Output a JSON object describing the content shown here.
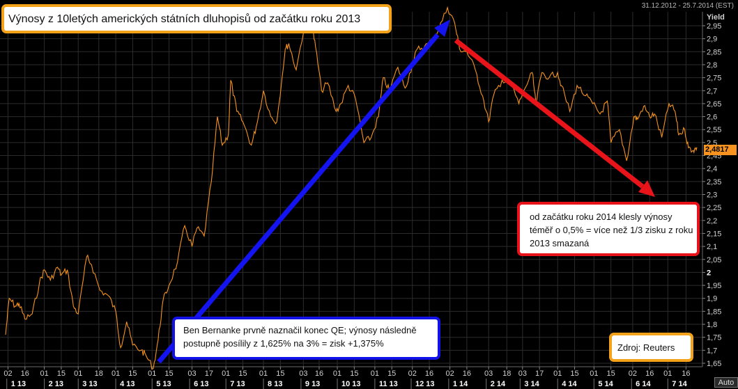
{
  "header": {
    "date_range": "31.12.2012 - 25.7.2014 (EST)"
  },
  "title_box": {
    "text": "Výnosy z 10letých amerických státních dluhopisů od začátku roku 2013"
  },
  "red_note": {
    "text": "od začátku roku 2014 klesly výnosy téměř o 0,5% = více než 1/3 zisku z roku 2013 smazaná"
  },
  "blue_note": {
    "text": "Ben Bernanke prvně naznačil konec QE; výnosy následně postupně posílily z 1,625% na 3% = zisk +1,375%"
  },
  "source_box": {
    "text": "Zdroj: Reuters"
  },
  "y_axis": {
    "name": "Yield",
    "last_value": "2,4817",
    "auto_button": "Auto"
  },
  "colors": {
    "line": "#f7931e",
    "grid": "#2c2c2c",
    "up_arrow": "#1414f0",
    "down_arrow": "#e8141a",
    "callout_border": "#f4a21a"
  },
  "chart_data": {
    "type": "line",
    "ylabel": "Yield",
    "ylim": [
      1.63,
      3.02
    ],
    "x_start": "2012-12-31",
    "x_end": "2014-07-25",
    "y_ticks": [
      {
        "value": 1.65,
        "label": "1,65"
      },
      {
        "value": 1.7,
        "label": "1,7"
      },
      {
        "value": 1.75,
        "label": "1,75"
      },
      {
        "value": 1.8,
        "label": "1,8"
      },
      {
        "value": 1.85,
        "label": "1,85"
      },
      {
        "value": 1.9,
        "label": "1,9"
      },
      {
        "value": 1.95,
        "label": "1,95"
      },
      {
        "value": 2.0,
        "label": "2"
      },
      {
        "value": 2.05,
        "label": "2,05"
      },
      {
        "value": 2.1,
        "label": "2,1"
      },
      {
        "value": 2.15,
        "label": "2,15"
      },
      {
        "value": 2.2,
        "label": "2,2"
      },
      {
        "value": 2.25,
        "label": "2,25"
      },
      {
        "value": 2.3,
        "label": "2,3"
      },
      {
        "value": 2.35,
        "label": "2,35"
      },
      {
        "value": 2.4,
        "label": "2,4"
      },
      {
        "value": 2.45,
        "label": "2,45"
      },
      {
        "value": 2.5,
        "label": "2,5"
      },
      {
        "value": 2.55,
        "label": "2,55"
      },
      {
        "value": 2.6,
        "label": "2,6"
      },
      {
        "value": 2.65,
        "label": "2,65"
      },
      {
        "value": 2.7,
        "label": "2,7"
      },
      {
        "value": 2.75,
        "label": "2,75"
      },
      {
        "value": 2.8,
        "label": "2,8"
      },
      {
        "value": 2.85,
        "label": "2,85"
      },
      {
        "value": 2.9,
        "label": "2,9"
      },
      {
        "value": 2.95,
        "label": "2,95"
      }
    ],
    "x_ticks": [
      {
        "date": "2013-01-02",
        "label": "02"
      },
      {
        "date": "2013-01-16",
        "label": "16"
      },
      {
        "date": "2013-02-01",
        "label": "01"
      },
      {
        "date": "2013-02-15",
        "label": "15"
      },
      {
        "date": "2013-03-01",
        "label": "01"
      },
      {
        "date": "2013-03-18",
        "label": "18"
      },
      {
        "date": "2013-04-01",
        "label": "01"
      },
      {
        "date": "2013-04-15",
        "label": "15"
      },
      {
        "date": "2013-05-01",
        "label": "01"
      },
      {
        "date": "2013-05-15",
        "label": "15"
      },
      {
        "date": "2013-06-03",
        "label": "03"
      },
      {
        "date": "2013-06-17",
        "label": "17"
      },
      {
        "date": "2013-07-01",
        "label": "01"
      },
      {
        "date": "2013-07-15",
        "label": "15"
      },
      {
        "date": "2013-08-01",
        "label": "01"
      },
      {
        "date": "2013-08-15",
        "label": "15"
      },
      {
        "date": "2013-09-03",
        "label": "03"
      },
      {
        "date": "2013-09-16",
        "label": "16"
      },
      {
        "date": "2013-10-01",
        "label": "01"
      },
      {
        "date": "2013-10-15",
        "label": "15"
      },
      {
        "date": "2013-11-01",
        "label": "01"
      },
      {
        "date": "2013-11-15",
        "label": "15"
      },
      {
        "date": "2013-12-02",
        "label": "02"
      },
      {
        "date": "2013-12-16",
        "label": "16"
      },
      {
        "date": "2014-01-02",
        "label": "02"
      },
      {
        "date": "2014-01-16",
        "label": "16"
      },
      {
        "date": "2014-02-03",
        "label": "03"
      },
      {
        "date": "2014-02-18",
        "label": "18"
      },
      {
        "date": "2014-03-03",
        "label": "03"
      },
      {
        "date": "2014-03-17",
        "label": "17"
      },
      {
        "date": "2014-04-01",
        "label": "01"
      },
      {
        "date": "2014-04-15",
        "label": "15"
      },
      {
        "date": "2014-05-01",
        "label": "01"
      },
      {
        "date": "2014-05-15",
        "label": "15"
      },
      {
        "date": "2014-06-02",
        "label": "02"
      },
      {
        "date": "2014-06-16",
        "label": "16"
      },
      {
        "date": "2014-07-01",
        "label": "01"
      },
      {
        "date": "2014-07-16",
        "label": "16"
      }
    ],
    "month_labels": [
      {
        "date": "2013-01-01",
        "label": "1 13"
      },
      {
        "date": "2013-02-01",
        "label": "2 13"
      },
      {
        "date": "2013-03-01",
        "label": "3 13"
      },
      {
        "date": "2013-04-01",
        "label": "4 13"
      },
      {
        "date": "2013-05-01",
        "label": "5 13"
      },
      {
        "date": "2013-06-01",
        "label": "6 13"
      },
      {
        "date": "2013-07-01",
        "label": "7 13"
      },
      {
        "date": "2013-08-01",
        "label": "8 13"
      },
      {
        "date": "2013-09-01",
        "label": "9 13"
      },
      {
        "date": "2013-10-01",
        "label": "10 13"
      },
      {
        "date": "2013-11-01",
        "label": "11 13"
      },
      {
        "date": "2013-12-01",
        "label": "12 13"
      },
      {
        "date": "2014-01-01",
        "label": "1 14"
      },
      {
        "date": "2014-02-01",
        "label": "2 14"
      },
      {
        "date": "2014-03-01",
        "label": "3 14"
      },
      {
        "date": "2014-04-01",
        "label": "4 14"
      },
      {
        "date": "2014-05-01",
        "label": "5 14"
      },
      {
        "date": "2014-06-01",
        "label": "6 14"
      },
      {
        "date": "2014-07-01",
        "label": "7 14"
      }
    ],
    "series": [
      {
        "points": [
          [
            "2012-12-31",
            1.76
          ],
          [
            "2013-01-03",
            1.9
          ],
          [
            "2013-01-08",
            1.87
          ],
          [
            "2013-01-11",
            1.88
          ],
          [
            "2013-01-16",
            1.82
          ],
          [
            "2013-01-22",
            1.84
          ],
          [
            "2013-01-28",
            1.96
          ],
          [
            "2013-02-01",
            2.01
          ],
          [
            "2013-02-06",
            1.97
          ],
          [
            "2013-02-12",
            2.02
          ],
          [
            "2013-02-15",
            1.99
          ],
          [
            "2013-02-20",
            2.01
          ],
          [
            "2013-02-25",
            1.87
          ],
          [
            "2013-03-01",
            1.84
          ],
          [
            "2013-03-08",
            2.06
          ],
          [
            "2013-03-12",
            2.03
          ],
          [
            "2013-03-19",
            1.93
          ],
          [
            "2013-03-26",
            1.91
          ],
          [
            "2013-04-01",
            1.85
          ],
          [
            "2013-04-05",
            1.71
          ],
          [
            "2013-04-10",
            1.81
          ],
          [
            "2013-04-15",
            1.72
          ],
          [
            "2013-04-22",
            1.7
          ],
          [
            "2013-04-26",
            1.68
          ],
          [
            "2013-05-02",
            1.63
          ],
          [
            "2013-05-06",
            1.74
          ],
          [
            "2013-05-10",
            1.89
          ],
          [
            "2013-05-15",
            1.95
          ],
          [
            "2013-05-22",
            2.04
          ],
          [
            "2013-05-28",
            2.18
          ],
          [
            "2013-06-03",
            2.1
          ],
          [
            "2013-06-07",
            2.17
          ],
          [
            "2013-06-13",
            2.14
          ],
          [
            "2013-06-19",
            2.35
          ],
          [
            "2013-06-24",
            2.6
          ],
          [
            "2013-06-28",
            2.49
          ],
          [
            "2013-07-03",
            2.53
          ],
          [
            "2013-07-05",
            2.74
          ],
          [
            "2013-07-10",
            2.62
          ],
          [
            "2013-07-15",
            2.58
          ],
          [
            "2013-07-22",
            2.49
          ],
          [
            "2013-07-26",
            2.56
          ],
          [
            "2013-08-01",
            2.7
          ],
          [
            "2013-08-07",
            2.6
          ],
          [
            "2013-08-12",
            2.58
          ],
          [
            "2013-08-19",
            2.86
          ],
          [
            "2013-08-22",
            2.88
          ],
          [
            "2013-08-28",
            2.78
          ],
          [
            "2013-09-05",
            2.98
          ],
          [
            "2013-09-10",
            2.95
          ],
          [
            "2013-09-13",
            2.87
          ],
          [
            "2013-09-18",
            2.7
          ],
          [
            "2013-09-23",
            2.73
          ],
          [
            "2013-09-30",
            2.62
          ],
          [
            "2013-10-04",
            2.65
          ],
          [
            "2013-10-10",
            2.72
          ],
          [
            "2013-10-16",
            2.67
          ],
          [
            "2013-10-23",
            2.5
          ],
          [
            "2013-10-29",
            2.52
          ],
          [
            "2013-11-04",
            2.6
          ],
          [
            "2013-11-08",
            2.75
          ],
          [
            "2013-11-13",
            2.7
          ],
          [
            "2013-11-20",
            2.79
          ],
          [
            "2013-11-26",
            2.71
          ],
          [
            "2013-12-02",
            2.8
          ],
          [
            "2013-12-06",
            2.86
          ],
          [
            "2013-12-12",
            2.87
          ],
          [
            "2013-12-18",
            2.89
          ],
          [
            "2013-12-24",
            2.94
          ],
          [
            "2013-12-31",
            3.02
          ],
          [
            "2014-01-06",
            2.96
          ],
          [
            "2014-01-10",
            2.86
          ],
          [
            "2014-01-16",
            2.85
          ],
          [
            "2014-01-23",
            2.78
          ],
          [
            "2014-01-29",
            2.68
          ],
          [
            "2014-02-03",
            2.58
          ],
          [
            "2014-02-07",
            2.68
          ],
          [
            "2014-02-14",
            2.74
          ],
          [
            "2014-02-21",
            2.73
          ],
          [
            "2014-02-28",
            2.65
          ],
          [
            "2014-03-04",
            2.7
          ],
          [
            "2014-03-11",
            2.77
          ],
          [
            "2014-03-14",
            2.65
          ],
          [
            "2014-03-19",
            2.77
          ],
          [
            "2014-03-25",
            2.75
          ],
          [
            "2014-04-01",
            2.77
          ],
          [
            "2014-04-04",
            2.72
          ],
          [
            "2014-04-11",
            2.62
          ],
          [
            "2014-04-17",
            2.72
          ],
          [
            "2014-04-24",
            2.68
          ],
          [
            "2014-04-30",
            2.65
          ],
          [
            "2014-05-06",
            2.61
          ],
          [
            "2014-05-12",
            2.66
          ],
          [
            "2014-05-15",
            2.5
          ],
          [
            "2014-05-22",
            2.55
          ],
          [
            "2014-05-28",
            2.43
          ],
          [
            "2014-06-03",
            2.6
          ],
          [
            "2014-06-06",
            2.59
          ],
          [
            "2014-06-11",
            2.64
          ],
          [
            "2014-06-16",
            2.6
          ],
          [
            "2014-06-20",
            2.61
          ],
          [
            "2014-06-26",
            2.52
          ],
          [
            "2014-07-02",
            2.65
          ],
          [
            "2014-07-07",
            2.62
          ],
          [
            "2014-07-10",
            2.53
          ],
          [
            "2014-07-15",
            2.55
          ],
          [
            "2014-07-18",
            2.48
          ],
          [
            "2014-07-22",
            2.47
          ],
          [
            "2014-07-25",
            2.4817
          ]
        ]
      }
    ]
  }
}
